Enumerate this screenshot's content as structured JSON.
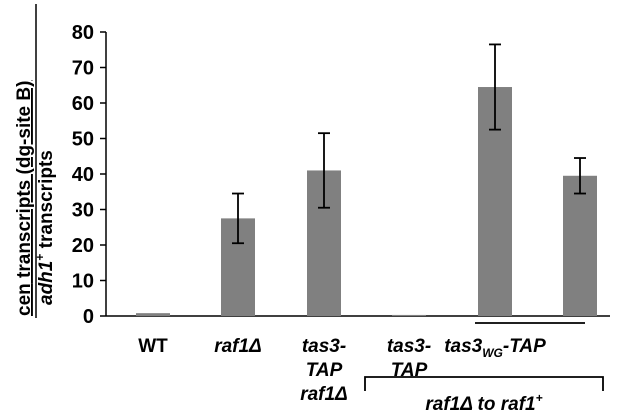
{
  "chart_data": {
    "type": "bar",
    "categories": [
      "WT",
      "raf1Δ",
      "tas3-TAP raf1Δ",
      "tas3-TAP",
      "tas3WG-TAP",
      ""
    ],
    "category_labels": [
      {
        "lines": [
          [
            {
              "t": "WT",
              "s": "normal"
            }
          ]
        ]
      },
      {
        "lines": [
          [
            {
              "t": "raf1Δ",
              "s": "italic"
            }
          ]
        ]
      },
      {
        "lines": [
          [
            {
              "t": "tas3-",
              "s": "italic"
            }
          ],
          [
            {
              "t": "TAP",
              "s": "italic"
            }
          ],
          [
            {
              "t": "raf1Δ",
              "s": "italic"
            }
          ]
        ]
      },
      {
        "lines": [
          [
            {
              "t": "tas3-",
              "s": "italic"
            }
          ],
          [
            {
              "t": "TAP",
              "s": "italic"
            }
          ]
        ]
      },
      {
        "lines": [
          [
            {
              "t": "tas3",
              "s": "italic"
            },
            {
              "t": "WG",
              "s": "sub"
            },
            {
              "t": "-TAP",
              "s": "italic"
            }
          ]
        ]
      },
      {
        "lines": []
      }
    ],
    "values": [
      0.8,
      27.5,
      41,
      0.3,
      64.5,
      39.5
    ],
    "errors": [
      0,
      7,
      10.5,
      0,
      12,
      5
    ],
    "ylim": [
      0,
      80
    ],
    "yticks": [
      0,
      10,
      20,
      30,
      40,
      50,
      60,
      70,
      80
    ],
    "bar_color": "#808080",
    "ylabel_numerator": {
      "prefix": "cen",
      "main": "transcripts (dg-site B)"
    },
    "ylabel_denominator": {
      "gene": "adh1",
      "sup": "+",
      "rest": " transcripts"
    },
    "group_label": {
      "text": "raf1Δ to raf1",
      "sup": "+"
    }
  }
}
